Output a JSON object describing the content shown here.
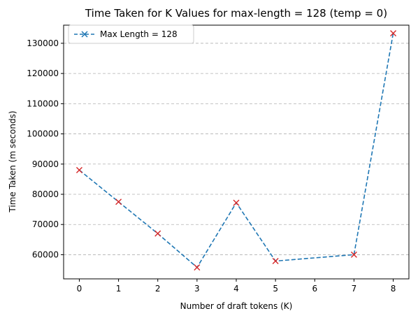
{
  "chart_data": {
    "type": "line",
    "title": "Time Taken for K Values for max-length = 128 (temp = 0)",
    "xlabel": "Number of draft tokens (K)",
    "ylabel": "Time Taken (m seconds)",
    "xlim": [
      -0.4,
      8.4
    ],
    "ylim": [
      52000,
      136000
    ],
    "xticks": [
      0,
      1,
      2,
      3,
      4,
      5,
      6,
      7,
      8
    ],
    "xtick_labels": [
      "0",
      "1",
      "2",
      "3",
      "4",
      "5",
      "6",
      "7",
      "8"
    ],
    "yticks": [
      60000,
      70000,
      80000,
      90000,
      100000,
      110000,
      120000,
      130000
    ],
    "ytick_labels": [
      "60000",
      "70000",
      "80000",
      "90000",
      "100000",
      "110000",
      "120000",
      "130000"
    ],
    "grid": "y-dashed",
    "legend_position": "upper-left",
    "series": [
      {
        "name": "Max Length = 128",
        "x": [
          0,
          1,
          2,
          3,
          4,
          5,
          7,
          8
        ],
        "y": [
          88000,
          77500,
          67000,
          55800,
          77200,
          57900,
          60000,
          133300
        ],
        "line_color": "#1f77b4",
        "line_style": "dashed",
        "marker": "x",
        "marker_color": "#d62728"
      }
    ]
  }
}
